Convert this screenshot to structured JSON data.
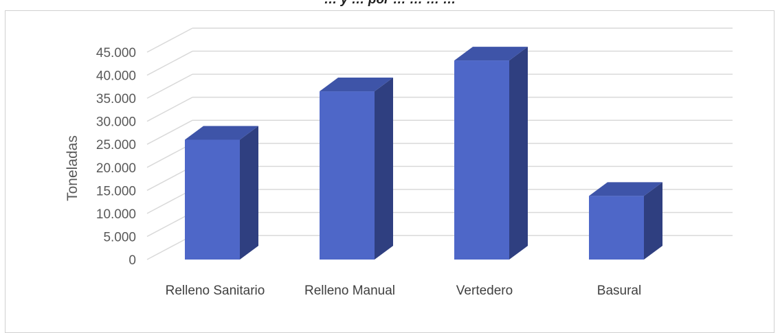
{
  "chart_data": {
    "type": "bar",
    "style": "3d-column",
    "title": "… y … por … … … …",
    "ylabel": "Toneladas",
    "xlabel": "",
    "categories": [
      "Relleno Sanitario",
      "Relleno Manual",
      "Vertedero",
      "Basural"
    ],
    "values": [
      26000,
      36500,
      43200,
      13800
    ],
    "ylim": [
      0,
      45000
    ],
    "yticks": [
      0,
      5000,
      10000,
      15000,
      20000,
      25000,
      30000,
      35000,
      40000,
      45000
    ],
    "ytick_labels": [
      "0",
      "5.000",
      "10.000",
      "15.000",
      "20.000",
      "25.000",
      "30.000",
      "35.000",
      "40.000",
      "45.000"
    ],
    "grid": true,
    "legend": "none",
    "colors": {
      "front": "#4e67c8",
      "side": "#2f3f80",
      "top": "#3e54a8",
      "grid": "#d9d9d9"
    }
  }
}
